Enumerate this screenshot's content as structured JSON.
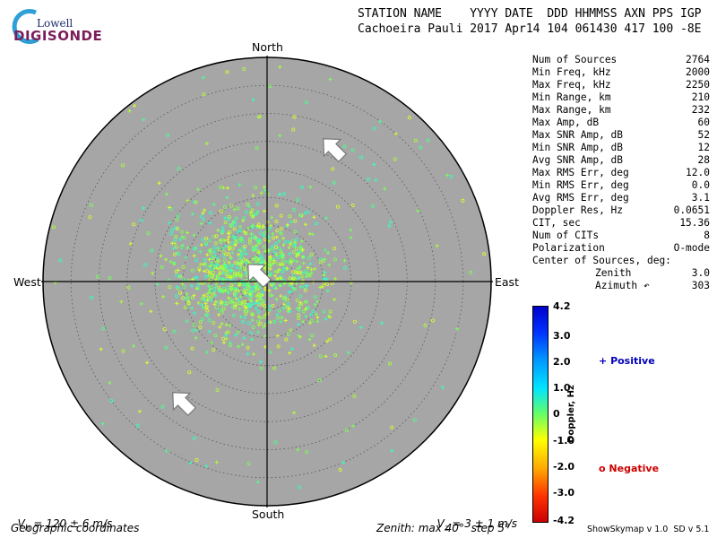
{
  "logo": {
    "company": "Lowell",
    "product": "DIGISONDE"
  },
  "header": {
    "line1": "STATION NAME    YYYY DATE  DDD HHMMSS AXN PPS IGP",
    "line2": "Cachoeira Pauli 2017 Apr14 104 061430 417 100 -8E"
  },
  "directions": {
    "north": "North",
    "south": "South",
    "west": "West",
    "east": "East"
  },
  "stats": [
    {
      "label": "Num of Sources",
      "value": "2764"
    },
    {
      "label": "Min Freq, kHz",
      "value": "2000"
    },
    {
      "label": "Max Freq, kHz",
      "value": "2250"
    },
    {
      "label": "Min Range, km",
      "value": "210"
    },
    {
      "label": "Max Range, km",
      "value": "232"
    },
    {
      "label": "Max Amp, dB",
      "value": "60"
    },
    {
      "label": "Max SNR Amp, dB",
      "value": "52"
    },
    {
      "label": "Min SNR Amp, dB",
      "value": "12"
    },
    {
      "label": "Avg SNR Amp, dB",
      "value": "28"
    },
    {
      "label": "Max RMS Err, deg",
      "value": "12.0"
    },
    {
      "label": "Min RMS Err, deg",
      "value": "0.0"
    },
    {
      "label": "Avg RMS Err, deg",
      "value": "3.1"
    },
    {
      "label": "Doppler Res, Hz",
      "value": "0.0651"
    },
    {
      "label": "CIT, sec",
      "value": "15.36"
    },
    {
      "label": "Num of CITs",
      "value": "8"
    },
    {
      "label": "Polarization",
      "value": "O-mode"
    },
    {
      "label": "Center of Sources, deg:",
      "value": ""
    },
    {
      "label": "Zenith",
      "value": "3.0",
      "indent": true
    },
    {
      "label": "Azimuth ↶",
      "value": "303",
      "indent": true
    }
  ],
  "doppler_scale": {
    "label": "Doppler, Hz",
    "ticks": [
      "4.2",
      "3.0",
      "2.0",
      "1.0",
      "0",
      "-1.0",
      "-2.0",
      "-3.0",
      "-4.2"
    ],
    "colors": [
      "#0000cc",
      "#0033ff",
      "#0099ff",
      "#00e5ff",
      "#66ff66",
      "#ffff00",
      "#ffaa00",
      "#ff3300",
      "#cc0000"
    ]
  },
  "legend": {
    "positive_symbol": "+",
    "positive_label": "Positive",
    "positive_color": "#0000bb",
    "negative_symbol": "o",
    "negative_label": "Negative",
    "negative_color": "#cc0000"
  },
  "footer": {
    "vh_prefix": "V",
    "vh_sub": "h",
    "vh_rest": " = 120 ± 6 m/s",
    "vz_prefix": "V",
    "vz_sub": "z",
    "vz_rest": " = 3 ± 1 m/s",
    "coords": "Geographic coordinates",
    "zenith": "Zenith: max 40°  step 5°",
    "version": "ShowSkymap v 1.0  SD v 5.1"
  },
  "colors": {
    "plot_bg": "#a6a6a6",
    "grid": "#555555",
    "source_palette": [
      "#7cff5a",
      "#aaff3a",
      "#d6ff2a",
      "#4dff8c",
      "#33ffc4"
    ]
  }
}
